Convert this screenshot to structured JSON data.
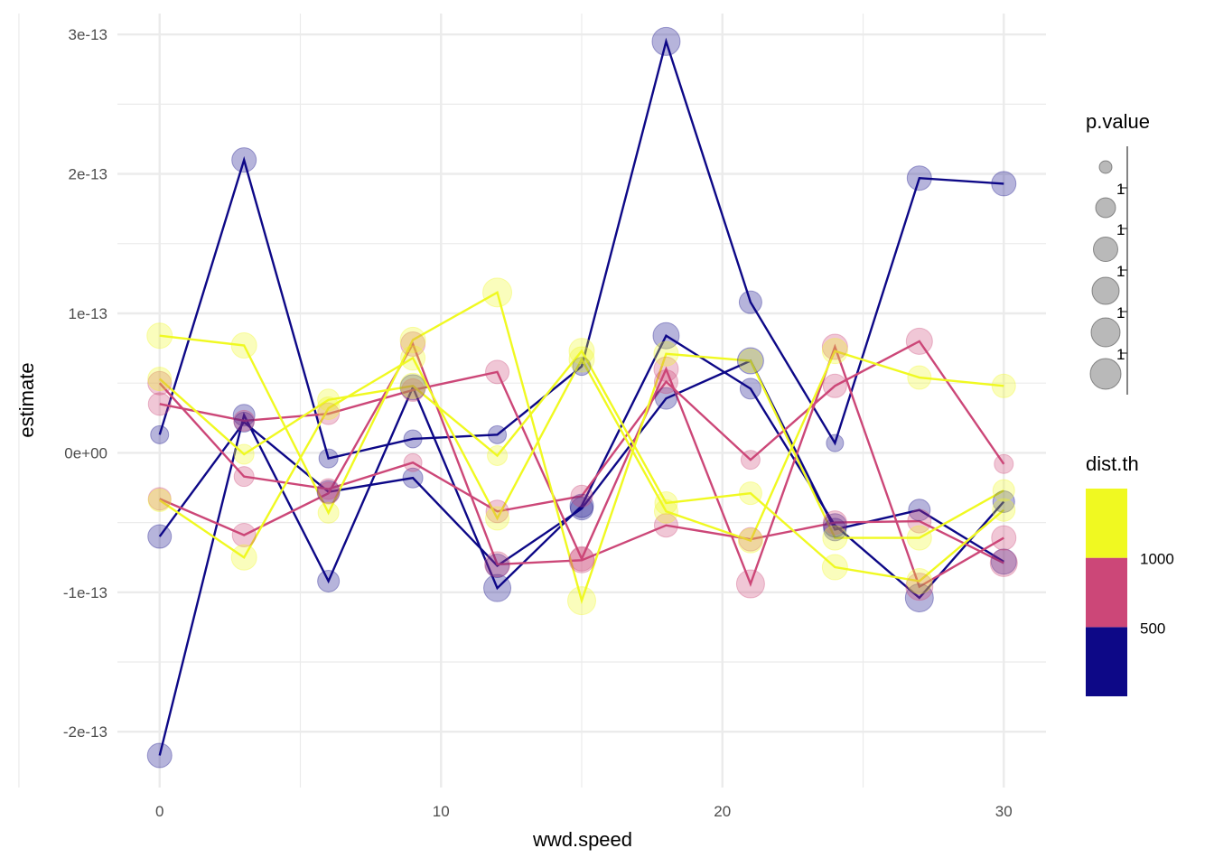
{
  "chart_data": {
    "type": "line",
    "xlabel": "wwd.speed",
    "ylabel": "estimate",
    "xlim": [
      -1.5,
      31.5
    ],
    "ylim": [
      -2.4e-13,
      3.15e-13
    ],
    "x_ticks": [
      0,
      10,
      20,
      30
    ],
    "x_tick_labels": [
      "0",
      "10",
      "20",
      "30"
    ],
    "y_ticks": [
      -2e-13,
      -1e-13,
      0,
      1e-13,
      2e-13,
      3e-13
    ],
    "y_tick_labels": [
      "-2e-13",
      "-1e-13",
      "0e+00",
      "1e-13",
      "2e-13",
      "3e-13"
    ],
    "grid": true,
    "x": [
      0,
      3,
      6,
      9,
      12,
      15,
      18,
      21,
      24,
      27,
      30
    ],
    "series": [
      {
        "dist_th": 300,
        "color": "#0D0887",
        "values": [
          1.3e-14,
          2.1e-13,
          -4e-15,
          1e-14,
          1.3e-14,
          6.2e-14,
          2.95e-13,
          1.08e-13,
          7e-15,
          1.97e-13,
          1.93e-13
        ],
        "sizes": [
          0.2,
          0.55,
          0.25,
          0.2,
          0.2,
          0.2,
          0.75,
          0.45,
          0.15,
          0.55,
          0.55
        ]
      },
      {
        "dist_th": 300,
        "color": "#0D0887",
        "values": [
          -2.17e-13,
          2.7e-14,
          -9.2e-14,
          4.7e-14,
          -9.7e-14,
          -3.8e-14,
          8.4e-14,
          4.6e-14,
          -5.2e-14,
          -1.04e-13,
          -3.5e-14
        ],
        "sizes": [
          0.55,
          0.4,
          0.4,
          0.6,
          0.7,
          0.5,
          0.65,
          0.35,
          0.5,
          0.75,
          0.4
        ]
      },
      {
        "dist_th": 300,
        "color": "#0D0887",
        "values": [
          -6e-14,
          2.2e-14,
          -2.8e-14,
          -1.8e-14,
          -8.1e-14,
          -4e-14,
          3.9e-14,
          6.6e-14,
          -5.5e-14,
          -4.1e-14,
          -7.8e-14
        ],
        "sizes": [
          0.5,
          0.3,
          0.45,
          0.3,
          0.5,
          0.45,
          0.4,
          0.65,
          0.45,
          0.4,
          0.6
        ]
      },
      {
        "dist_th": 750,
        "color": "#CC4778",
        "values": [
          5e-14,
          -1.7e-14,
          -2.6e-14,
          -7e-15,
          -4.2e-14,
          -3.1e-14,
          5.1e-14,
          -5e-15,
          4.8e-14,
          8e-14,
          -8e-15
        ],
        "sizes": [
          0.5,
          0.3,
          0.35,
          0.2,
          0.45,
          0.4,
          0.5,
          0.25,
          0.5,
          0.65,
          0.25
        ]
      },
      {
        "dist_th": 750,
        "color": "#CC4778",
        "values": [
          3.5e-14,
          2.3e-14,
          2.8e-14,
          4.5e-14,
          5.8e-14,
          -7.6e-14,
          6e-14,
          -9.4e-14,
          7.6e-14,
          -9.6e-14,
          -6.1e-14
        ],
        "sizes": [
          0.45,
          0.35,
          0.4,
          0.45,
          0.5,
          0.55,
          0.55,
          0.75,
          0.6,
          0.7,
          0.55
        ]
      },
      {
        "dist_th": 750,
        "color": "#CC4778",
        "values": [
          -3.3e-14,
          -5.9e-14,
          -2.9e-14,
          7.8e-14,
          -8e-14,
          -7.7e-14,
          -5.2e-14,
          -6.2e-14,
          -5e-14,
          -4.9e-14,
          -7.9e-14
        ],
        "sizes": [
          0.45,
          0.5,
          0.4,
          0.55,
          0.6,
          0.6,
          0.5,
          0.5,
          0.5,
          0.5,
          0.7
        ]
      },
      {
        "dist_th": 1250,
        "color": "#F0F921",
        "values": [
          8.4e-14,
          7.7e-14,
          -4.3e-14,
          8.1e-14,
          1.15e-13,
          -1.06e-13,
          7.1e-14,
          6.6e-14,
          -6.1e-14,
          -6.1e-14,
          -2.7e-14
        ],
        "sizes": [
          0.6,
          0.6,
          0.35,
          0.6,
          0.8,
          0.75,
          0.55,
          0.5,
          0.55,
          0.55,
          0.4
        ]
      },
      {
        "dist_th": 1250,
        "color": "#F0F921",
        "values": [
          5.3e-14,
          -1e-15,
          3.8e-14,
          4.8e-14,
          -2e-15,
          7.3e-14,
          -3.6e-14,
          -2.9e-14,
          -8.2e-14,
          -9.2e-14,
          -4.1e-14
        ],
        "sizes": [
          0.5,
          0.3,
          0.4,
          0.6,
          0.3,
          0.6,
          0.45,
          0.45,
          0.6,
          0.6,
          0.45
        ]
      },
      {
        "dist_th": 1250,
        "color": "#F0F921",
        "values": [
          -3.4e-14,
          -7.5e-14,
          3.2e-14,
          6.8e-14,
          -4.7e-14,
          6.7e-14,
          -4.2e-14,
          -6.3e-14,
          7.3e-14,
          5.4e-14,
          4.8e-14
        ],
        "sizes": [
          0.45,
          0.6,
          0.45,
          0.55,
          0.5,
          0.6,
          0.5,
          0.55,
          0.6,
          0.5,
          0.5
        ]
      }
    ],
    "legend_size": {
      "title": "p.value",
      "labels": [
        "1",
        "1",
        "1",
        "1",
        "1"
      ],
      "point_color": "#808080"
    },
    "legend_color": {
      "title": "dist.th",
      "colors": [
        "#0D0887",
        "#CC4778",
        "#F0F921"
      ],
      "breaks": [
        500,
        1000
      ],
      "labels": [
        "500",
        "1000"
      ],
      "limits": [
        0,
        1500
      ]
    },
    "legend_placement": "right"
  }
}
